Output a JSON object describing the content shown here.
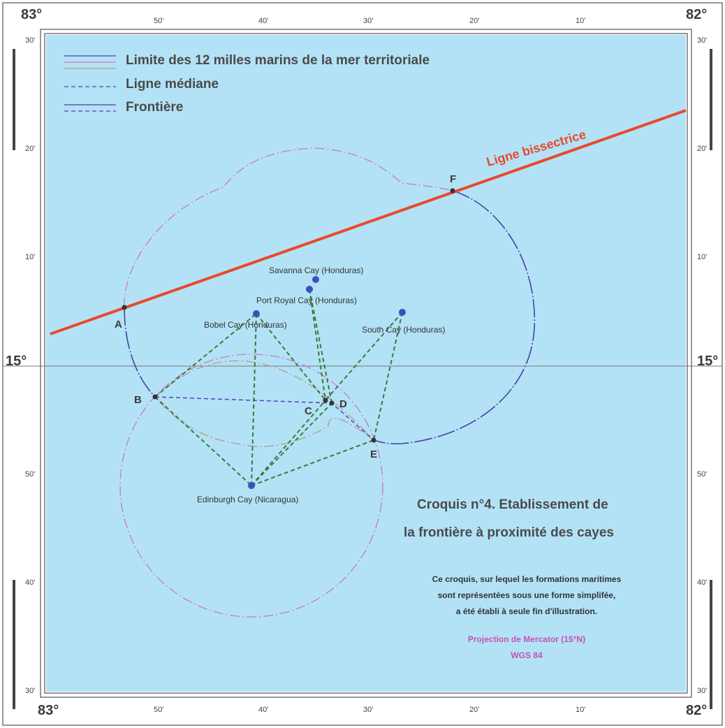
{
  "map": {
    "corners": {
      "tl": "83°",
      "tr": "82°",
      "bl": "83°",
      "br": "82°"
    },
    "lat_left": {
      "l30top": "30'",
      "l20": "20'",
      "l10": "10'",
      "l15": "15°",
      "l50": "50'",
      "l40": "40'",
      "l30bot": "30'"
    },
    "lat_right": {
      "l30top": "30'",
      "l20": "20'",
      "l10": "10'",
      "l15": "15°",
      "l50": "50'",
      "l40": "40'",
      "l30bot": "30'"
    },
    "lon_top": [
      "50'",
      "40'",
      "30'",
      "20'",
      "10'"
    ],
    "lon_bottom": [
      "50'",
      "40'",
      "30'",
      "20'",
      "10'"
    ],
    "legend": {
      "territorial": "Limite des 12 milles marins de la mer territoriale",
      "median": "Ligne médiane",
      "frontier": "Frontière"
    },
    "bisector_label": "Ligne bissectrice",
    "cays": {
      "savanna": "Savanna Cay (Honduras)",
      "port_royal": "Port Royal Cay (Honduras)",
      "bobel": "Bobel Cay (Honduras)",
      "south": "South Cay (Honduras)",
      "edinburgh": "Edinburgh Cay (Nicaragua)"
    },
    "points": {
      "A": "A",
      "B": "B",
      "C": "C",
      "D": "D",
      "E": "E",
      "F": "F"
    },
    "title_line1": "Croquis n°4. Etablissement de",
    "title_line2": "la frontière à proximité des cayes",
    "note_line1": "Ce croquis, sur lequel les formations maritimes",
    "note_line2": "sont représentées sous une forme simplifée,",
    "note_line3": "a été établi à seule fin d'illustration.",
    "projection": "Projection de Mercator (15°N)",
    "datum": "WGS 84",
    "colors": {
      "sea": "#b3e2f6",
      "bisector": "#e8492c",
      "frontier": "#4b3fa0",
      "territorial_honduras": "#c879c6",
      "territorial_nicaragua": "#b49a8c",
      "median": "#5b3fb0",
      "equidistance": "#3a7a3a",
      "projection_text": "#c253b5"
    }
  }
}
